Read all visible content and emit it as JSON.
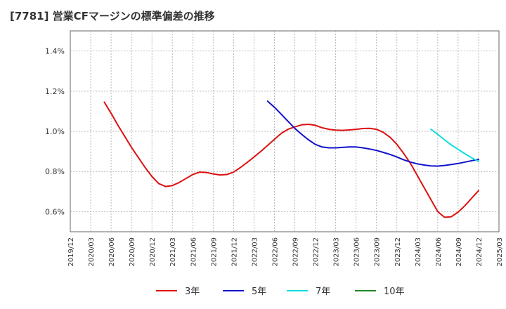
{
  "chart_data": {
    "type": "line",
    "title": "[7781]  営業CFマージンの標準偏差の推移",
    "xlabel": "",
    "ylabel": "",
    "ylim": [
      0.5,
      1.5
    ],
    "yticks": [
      {
        "value": 0.6,
        "label": "0.6%"
      },
      {
        "value": 0.8,
        "label": "0.8%"
      },
      {
        "value": 1.0,
        "label": "1.0%"
      },
      {
        "value": 1.2,
        "label": "1.2%"
      },
      {
        "value": 1.4,
        "label": "1.4%"
      }
    ],
    "xticks": [
      "2019/12",
      "2020/03",
      "2020/06",
      "2020/09",
      "2020/12",
      "2021/03",
      "2021/06",
      "2021/09",
      "2021/12",
      "2022/03",
      "2022/06",
      "2022/09",
      "2022/12",
      "2023/03",
      "2023/06",
      "2023/09",
      "2023/12",
      "2024/03",
      "2024/06",
      "2024/09",
      "2024/12",
      "2025/03"
    ],
    "grid": true,
    "legend_position": "bottom",
    "series": [
      {
        "name": "3年",
        "color": "#dd1111",
        "points": [
          [
            "2020/05",
            1.145
          ],
          [
            "2020/06",
            1.09
          ],
          [
            "2020/07",
            1.03
          ],
          [
            "2020/08",
            0.975
          ],
          [
            "2020/09",
            0.92
          ],
          [
            "2020/10",
            0.87
          ],
          [
            "2020/11",
            0.82
          ],
          [
            "2020/12",
            0.775
          ],
          [
            "2021/01",
            0.74
          ],
          [
            "2021/02",
            0.725
          ],
          [
            "2021/03",
            0.73
          ],
          [
            "2021/04",
            0.745
          ],
          [
            "2021/05",
            0.765
          ],
          [
            "2021/06",
            0.785
          ],
          [
            "2021/07",
            0.797
          ],
          [
            "2021/08",
            0.795
          ],
          [
            "2021/09",
            0.788
          ],
          [
            "2021/10",
            0.783
          ],
          [
            "2021/11",
            0.785
          ],
          [
            "2021/12",
            0.797
          ],
          [
            "2022/01",
            0.82
          ],
          [
            "2022/02",
            0.845
          ],
          [
            "2022/03",
            0.872
          ],
          [
            "2022/04",
            0.9
          ],
          [
            "2022/05",
            0.93
          ],
          [
            "2022/06",
            0.96
          ],
          [
            "2022/07",
            0.99
          ],
          [
            "2022/08",
            1.01
          ],
          [
            "2022/09",
            1.022
          ],
          [
            "2022/10",
            1.032
          ],
          [
            "2022/11",
            1.035
          ],
          [
            "2022/12",
            1.03
          ],
          [
            "2023/01",
            1.018
          ],
          [
            "2023/02",
            1.01
          ],
          [
            "2023/03",
            1.006
          ],
          [
            "2023/04",
            1.005
          ],
          [
            "2023/05",
            1.007
          ],
          [
            "2023/06",
            1.01
          ],
          [
            "2023/07",
            1.014
          ],
          [
            "2023/08",
            1.015
          ],
          [
            "2023/09",
            1.01
          ],
          [
            "2023/10",
            0.995
          ],
          [
            "2023/11",
            0.97
          ],
          [
            "2023/12",
            0.935
          ],
          [
            "2024/01",
            0.89
          ],
          [
            "2024/02",
            0.84
          ],
          [
            "2024/03",
            0.78
          ],
          [
            "2024/04",
            0.72
          ],
          [
            "2024/05",
            0.66
          ],
          [
            "2024/06",
            0.6
          ],
          [
            "2024/07",
            0.572
          ],
          [
            "2024/08",
            0.575
          ],
          [
            "2024/09",
            0.598
          ],
          [
            "2024/10",
            0.63
          ],
          [
            "2024/11",
            0.668
          ],
          [
            "2024/12",
            0.705
          ]
        ]
      },
      {
        "name": "5年",
        "color": "#1111cc",
        "points": [
          [
            "2022/05",
            1.15
          ],
          [
            "2022/06",
            1.12
          ],
          [
            "2022/07",
            1.085
          ],
          [
            "2022/08",
            1.05
          ],
          [
            "2022/09",
            1.015
          ],
          [
            "2022/10",
            0.985
          ],
          [
            "2022/11",
            0.958
          ],
          [
            "2022/12",
            0.935
          ],
          [
            "2023/01",
            0.922
          ],
          [
            "2023/02",
            0.918
          ],
          [
            "2023/03",
            0.918
          ],
          [
            "2023/04",
            0.92
          ],
          [
            "2023/05",
            0.922
          ],
          [
            "2023/06",
            0.922
          ],
          [
            "2023/07",
            0.918
          ],
          [
            "2023/08",
            0.912
          ],
          [
            "2023/09",
            0.905
          ],
          [
            "2023/10",
            0.895
          ],
          [
            "2023/11",
            0.885
          ],
          [
            "2023/12",
            0.872
          ],
          [
            "2024/01",
            0.858
          ],
          [
            "2024/02",
            0.847
          ],
          [
            "2024/03",
            0.838
          ],
          [
            "2024/04",
            0.832
          ],
          [
            "2024/05",
            0.828
          ],
          [
            "2024/06",
            0.827
          ],
          [
            "2024/07",
            0.83
          ],
          [
            "2024/08",
            0.835
          ],
          [
            "2024/09",
            0.84
          ],
          [
            "2024/10",
            0.847
          ],
          [
            "2024/11",
            0.854
          ],
          [
            "2024/12",
            0.86
          ]
        ]
      },
      {
        "name": "7年",
        "color": "#11dddd",
        "points": [
          [
            "2024/05",
            1.01
          ],
          [
            "2024/06",
            0.985
          ],
          [
            "2024/07",
            0.958
          ],
          [
            "2024/08",
            0.932
          ],
          [
            "2024/09",
            0.91
          ],
          [
            "2024/10",
            0.888
          ],
          [
            "2024/11",
            0.868
          ],
          [
            "2024/12",
            0.85
          ]
        ]
      },
      {
        "name": "10年",
        "color": "#228822",
        "points": []
      }
    ]
  }
}
